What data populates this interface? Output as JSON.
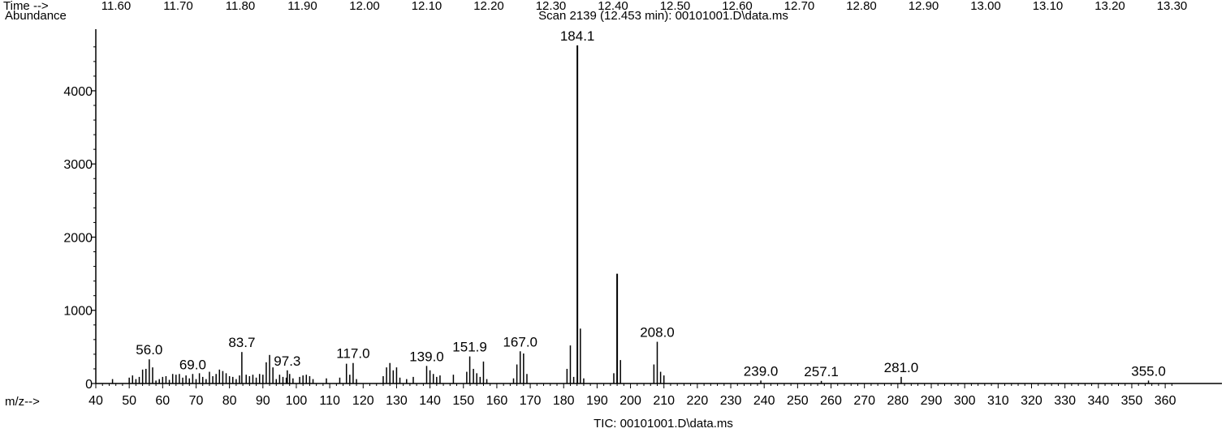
{
  "header": {
    "time_label": "Time -->",
    "time_ticks": [
      "11.60",
      "11.70",
      "11.80",
      "11.90",
      "12.00",
      "12.10",
      "12.20",
      "12.30",
      "12.40",
      "12.50",
      "12.60",
      "12.70",
      "12.80",
      "12.90",
      "13.00",
      "13.10",
      "13.20",
      "13.30"
    ],
    "abundance_label": "Abundance",
    "scan_title": "Scan 2139 (12.453 min): 00101001.D\\data.ms"
  },
  "footer": {
    "mz_label": "m/z-->",
    "tic_label": "TIC: 00101001.D\\data.ms"
  },
  "chart_data": {
    "type": "bar",
    "title": "Scan 2139 (12.453 min): 00101001.D\\data.ms",
    "xlabel": "m/z-->",
    "ylabel": "Abundance",
    "xlim": [
      40,
      362
    ],
    "ylim": [
      0,
      4650
    ],
    "x_ticks": [
      40,
      50,
      60,
      70,
      80,
      90,
      100,
      110,
      120,
      130,
      140,
      150,
      160,
      170,
      180,
      190,
      200,
      210,
      220,
      230,
      240,
      250,
      260,
      270,
      280,
      290,
      300,
      310,
      320,
      330,
      340,
      350,
      360
    ],
    "y_ticks": [
      0,
      1000,
      2000,
      3000,
      4000
    ],
    "peaks": [
      {
        "mz": 45,
        "abundance": 60
      },
      {
        "mz": 50,
        "abundance": 80
      },
      {
        "mz": 51,
        "abundance": 110
      },
      {
        "mz": 52,
        "abundance": 60
      },
      {
        "mz": 53,
        "abundance": 90
      },
      {
        "mz": 54,
        "abundance": 190
      },
      {
        "mz": 55,
        "abundance": 200
      },
      {
        "mz": 56,
        "abundance": 330
      },
      {
        "mz": 57,
        "abundance": 220
      },
      {
        "mz": 58,
        "abundance": 40
      },
      {
        "mz": 59,
        "abundance": 60
      },
      {
        "mz": 60,
        "abundance": 90
      },
      {
        "mz": 61,
        "abundance": 100
      },
      {
        "mz": 62,
        "abundance": 50
      },
      {
        "mz": 63,
        "abundance": 130
      },
      {
        "mz": 64,
        "abundance": 120
      },
      {
        "mz": 65,
        "abundance": 130
      },
      {
        "mz": 66,
        "abundance": 80
      },
      {
        "mz": 67,
        "abundance": 110
      },
      {
        "mz": 68,
        "abundance": 70
      },
      {
        "mz": 69,
        "abundance": 130
      },
      {
        "mz": 70,
        "abundance": 60
      },
      {
        "mz": 71,
        "abundance": 140
      },
      {
        "mz": 72,
        "abundance": 90
      },
      {
        "mz": 73,
        "abundance": 60
      },
      {
        "mz": 74,
        "abundance": 160
      },
      {
        "mz": 75,
        "abundance": 100
      },
      {
        "mz": 76,
        "abundance": 130
      },
      {
        "mz": 77,
        "abundance": 190
      },
      {
        "mz": 78,
        "abundance": 170
      },
      {
        "mz": 79,
        "abundance": 140
      },
      {
        "mz": 80,
        "abundance": 100
      },
      {
        "mz": 81,
        "abundance": 90
      },
      {
        "mz": 82,
        "abundance": 60
      },
      {
        "mz": 83,
        "abundance": 110
      },
      {
        "mz": 83.7,
        "abundance": 430
      },
      {
        "mz": 85,
        "abundance": 120
      },
      {
        "mz": 86,
        "abundance": 100
      },
      {
        "mz": 87,
        "abundance": 120
      },
      {
        "mz": 88,
        "abundance": 80
      },
      {
        "mz": 89,
        "abundance": 130
      },
      {
        "mz": 90,
        "abundance": 120
      },
      {
        "mz": 91,
        "abundance": 290
      },
      {
        "mz": 92,
        "abundance": 390
      },
      {
        "mz": 93,
        "abundance": 220
      },
      {
        "mz": 94,
        "abundance": 60
      },
      {
        "mz": 95,
        "abundance": 120
      },
      {
        "mz": 96,
        "abundance": 90
      },
      {
        "mz": 97,
        "abundance": 80
      },
      {
        "mz": 97.3,
        "abundance": 180
      },
      {
        "mz": 98,
        "abundance": 130
      },
      {
        "mz": 99,
        "abundance": 70
      },
      {
        "mz": 101,
        "abundance": 90
      },
      {
        "mz": 102,
        "abundance": 110
      },
      {
        "mz": 103,
        "abundance": 120
      },
      {
        "mz": 104,
        "abundance": 100
      },
      {
        "mz": 105,
        "abundance": 60
      },
      {
        "mz": 109,
        "abundance": 70
      },
      {
        "mz": 113,
        "abundance": 80
      },
      {
        "mz": 115,
        "abundance": 270
      },
      {
        "mz": 116,
        "abundance": 120
      },
      {
        "mz": 117,
        "abundance": 280
      },
      {
        "mz": 118,
        "abundance": 60
      },
      {
        "mz": 126,
        "abundance": 100
      },
      {
        "mz": 127,
        "abundance": 220
      },
      {
        "mz": 128,
        "abundance": 280
      },
      {
        "mz": 129,
        "abundance": 180
      },
      {
        "mz": 130,
        "abundance": 220
      },
      {
        "mz": 131,
        "abundance": 80
      },
      {
        "mz": 133,
        "abundance": 60
      },
      {
        "mz": 135,
        "abundance": 90
      },
      {
        "mz": 139,
        "abundance": 240
      },
      {
        "mz": 140,
        "abundance": 180
      },
      {
        "mz": 141,
        "abundance": 130
      },
      {
        "mz": 142,
        "abundance": 90
      },
      {
        "mz": 143,
        "abundance": 110
      },
      {
        "mz": 147,
        "abundance": 120
      },
      {
        "mz": 151,
        "abundance": 160
      },
      {
        "mz": 151.9,
        "abundance": 370
      },
      {
        "mz": 153,
        "abundance": 200
      },
      {
        "mz": 154,
        "abundance": 140
      },
      {
        "mz": 155,
        "abundance": 90
      },
      {
        "mz": 156,
        "abundance": 300
      },
      {
        "mz": 157,
        "abundance": 60
      },
      {
        "mz": 165,
        "abundance": 70
      },
      {
        "mz": 166,
        "abundance": 260
      },
      {
        "mz": 167,
        "abundance": 440
      },
      {
        "mz": 168,
        "abundance": 410
      },
      {
        "mz": 169,
        "abundance": 130
      },
      {
        "mz": 181,
        "abundance": 200
      },
      {
        "mz": 182,
        "abundance": 520
      },
      {
        "mz": 183,
        "abundance": 90
      },
      {
        "mz": 184.1,
        "abundance": 4620
      },
      {
        "mz": 185,
        "abundance": 750
      },
      {
        "mz": 186,
        "abundance": 70
      },
      {
        "mz": 195,
        "abundance": 140
      },
      {
        "mz": 196,
        "abundance": 1500
      },
      {
        "mz": 197,
        "abundance": 320
      },
      {
        "mz": 207,
        "abundance": 260
      },
      {
        "mz": 208.0,
        "abundance": 570
      },
      {
        "mz": 209,
        "abundance": 160
      },
      {
        "mz": 210,
        "abundance": 110
      },
      {
        "mz": 239.0,
        "abundance": 40
      },
      {
        "mz": 257.1,
        "abundance": 35
      },
      {
        "mz": 281.0,
        "abundance": 90
      },
      {
        "mz": 355.0,
        "abundance": 40
      }
    ],
    "peak_labels": [
      {
        "mz": 56.0,
        "text": "56.0"
      },
      {
        "mz": 69.0,
        "text": "69.0"
      },
      {
        "mz": 83.7,
        "text": "83.7"
      },
      {
        "mz": 97.3,
        "text": "97.3"
      },
      {
        "mz": 117.0,
        "text": "117.0"
      },
      {
        "mz": 139.0,
        "text": "139.0"
      },
      {
        "mz": 151.9,
        "text": "151.9"
      },
      {
        "mz": 167.0,
        "text": "167.0"
      },
      {
        "mz": 184.1,
        "text": "184.1"
      },
      {
        "mz": 208.0,
        "text": "208.0"
      },
      {
        "mz": 239.0,
        "text": "239.0"
      },
      {
        "mz": 257.1,
        "text": "257.1"
      },
      {
        "mz": 281.0,
        "text": "281.0"
      },
      {
        "mz": 355.0,
        "text": "355.0"
      }
    ],
    "grid": false
  }
}
